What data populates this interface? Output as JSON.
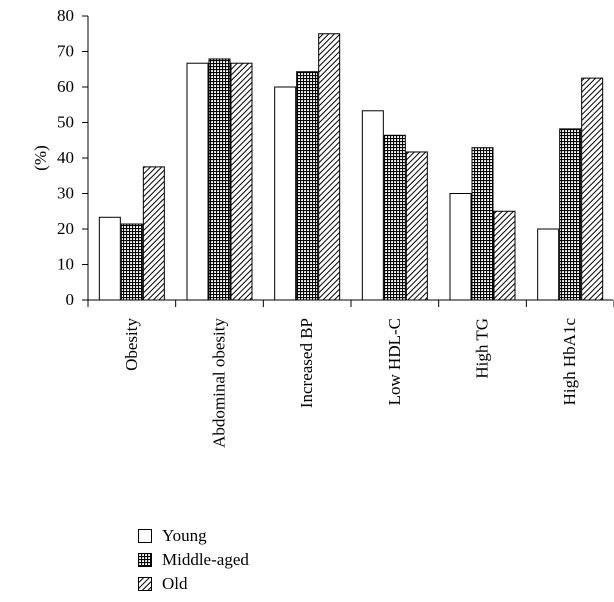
{
  "chart_data": {
    "type": "bar",
    "categories": [
      "Obesity",
      "Abdominal obesity",
      "Increased BP",
      "Low HDL-C",
      "High TG",
      "High HbA1c"
    ],
    "series": [
      {
        "name": "Young",
        "values": [
          23.3,
          66.7,
          60.0,
          53.3,
          30.0,
          20.0
        ]
      },
      {
        "name": "Middle-aged",
        "values": [
          21.4,
          67.9,
          64.3,
          46.4,
          42.9,
          48.2
        ]
      },
      {
        "name": "Old",
        "values": [
          37.5,
          66.7,
          75.0,
          41.7,
          25.0,
          62.5
        ]
      }
    ],
    "ylabel": "(%)",
    "xlabel": "",
    "ylim": [
      0,
      80
    ],
    "yticks": [
      0,
      10,
      20,
      30,
      40,
      50,
      60,
      70,
      80
    ],
    "legend_position": "bottom-left",
    "grid": false,
    "series_fill": [
      "none",
      "crosshatch",
      "diagonal-hatch"
    ]
  }
}
